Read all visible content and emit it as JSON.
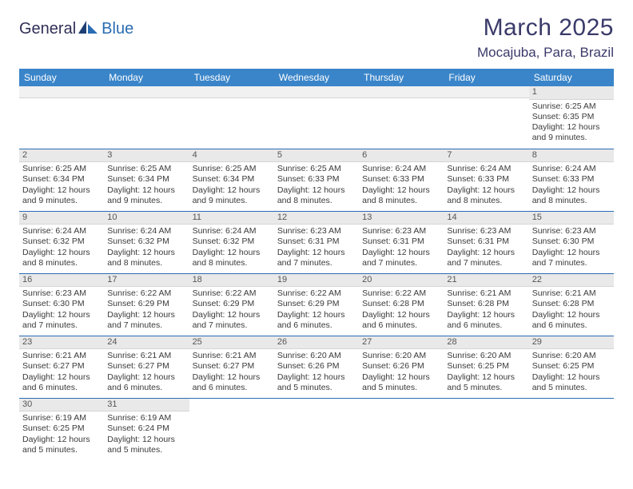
{
  "header": {
    "logo_general": "General",
    "logo_blue": "Blue",
    "month_title": "March 2025",
    "location": "Mocajuba, Para, Brazil"
  },
  "colors": {
    "header_bg": "#3a85c9",
    "row_divider": "#2a6cb2",
    "daynum_bg": "#e9e9e9",
    "title_color": "#3a3a6a"
  },
  "weekdays": [
    "Sunday",
    "Monday",
    "Tuesday",
    "Wednesday",
    "Thursday",
    "Friday",
    "Saturday"
  ],
  "weeks": [
    [
      null,
      null,
      null,
      null,
      null,
      null,
      {
        "n": "1",
        "sunrise": "Sunrise: 6:25 AM",
        "sunset": "Sunset: 6:35 PM",
        "daylight": "Daylight: 12 hours and 9 minutes."
      }
    ],
    [
      {
        "n": "2",
        "sunrise": "Sunrise: 6:25 AM",
        "sunset": "Sunset: 6:34 PM",
        "daylight": "Daylight: 12 hours and 9 minutes."
      },
      {
        "n": "3",
        "sunrise": "Sunrise: 6:25 AM",
        "sunset": "Sunset: 6:34 PM",
        "daylight": "Daylight: 12 hours and 9 minutes."
      },
      {
        "n": "4",
        "sunrise": "Sunrise: 6:25 AM",
        "sunset": "Sunset: 6:34 PM",
        "daylight": "Daylight: 12 hours and 9 minutes."
      },
      {
        "n": "5",
        "sunrise": "Sunrise: 6:25 AM",
        "sunset": "Sunset: 6:33 PM",
        "daylight": "Daylight: 12 hours and 8 minutes."
      },
      {
        "n": "6",
        "sunrise": "Sunrise: 6:24 AM",
        "sunset": "Sunset: 6:33 PM",
        "daylight": "Daylight: 12 hours and 8 minutes."
      },
      {
        "n": "7",
        "sunrise": "Sunrise: 6:24 AM",
        "sunset": "Sunset: 6:33 PM",
        "daylight": "Daylight: 12 hours and 8 minutes."
      },
      {
        "n": "8",
        "sunrise": "Sunrise: 6:24 AM",
        "sunset": "Sunset: 6:33 PM",
        "daylight": "Daylight: 12 hours and 8 minutes."
      }
    ],
    [
      {
        "n": "9",
        "sunrise": "Sunrise: 6:24 AM",
        "sunset": "Sunset: 6:32 PM",
        "daylight": "Daylight: 12 hours and 8 minutes."
      },
      {
        "n": "10",
        "sunrise": "Sunrise: 6:24 AM",
        "sunset": "Sunset: 6:32 PM",
        "daylight": "Daylight: 12 hours and 8 minutes."
      },
      {
        "n": "11",
        "sunrise": "Sunrise: 6:24 AM",
        "sunset": "Sunset: 6:32 PM",
        "daylight": "Daylight: 12 hours and 8 minutes."
      },
      {
        "n": "12",
        "sunrise": "Sunrise: 6:23 AM",
        "sunset": "Sunset: 6:31 PM",
        "daylight": "Daylight: 12 hours and 7 minutes."
      },
      {
        "n": "13",
        "sunrise": "Sunrise: 6:23 AM",
        "sunset": "Sunset: 6:31 PM",
        "daylight": "Daylight: 12 hours and 7 minutes."
      },
      {
        "n": "14",
        "sunrise": "Sunrise: 6:23 AM",
        "sunset": "Sunset: 6:31 PM",
        "daylight": "Daylight: 12 hours and 7 minutes."
      },
      {
        "n": "15",
        "sunrise": "Sunrise: 6:23 AM",
        "sunset": "Sunset: 6:30 PM",
        "daylight": "Daylight: 12 hours and 7 minutes."
      }
    ],
    [
      {
        "n": "16",
        "sunrise": "Sunrise: 6:23 AM",
        "sunset": "Sunset: 6:30 PM",
        "daylight": "Daylight: 12 hours and 7 minutes."
      },
      {
        "n": "17",
        "sunrise": "Sunrise: 6:22 AM",
        "sunset": "Sunset: 6:29 PM",
        "daylight": "Daylight: 12 hours and 7 minutes."
      },
      {
        "n": "18",
        "sunrise": "Sunrise: 6:22 AM",
        "sunset": "Sunset: 6:29 PM",
        "daylight": "Daylight: 12 hours and 7 minutes."
      },
      {
        "n": "19",
        "sunrise": "Sunrise: 6:22 AM",
        "sunset": "Sunset: 6:29 PM",
        "daylight": "Daylight: 12 hours and 6 minutes."
      },
      {
        "n": "20",
        "sunrise": "Sunrise: 6:22 AM",
        "sunset": "Sunset: 6:28 PM",
        "daylight": "Daylight: 12 hours and 6 minutes."
      },
      {
        "n": "21",
        "sunrise": "Sunrise: 6:21 AM",
        "sunset": "Sunset: 6:28 PM",
        "daylight": "Daylight: 12 hours and 6 minutes."
      },
      {
        "n": "22",
        "sunrise": "Sunrise: 6:21 AM",
        "sunset": "Sunset: 6:28 PM",
        "daylight": "Daylight: 12 hours and 6 minutes."
      }
    ],
    [
      {
        "n": "23",
        "sunrise": "Sunrise: 6:21 AM",
        "sunset": "Sunset: 6:27 PM",
        "daylight": "Daylight: 12 hours and 6 minutes."
      },
      {
        "n": "24",
        "sunrise": "Sunrise: 6:21 AM",
        "sunset": "Sunset: 6:27 PM",
        "daylight": "Daylight: 12 hours and 6 minutes."
      },
      {
        "n": "25",
        "sunrise": "Sunrise: 6:21 AM",
        "sunset": "Sunset: 6:27 PM",
        "daylight": "Daylight: 12 hours and 6 minutes."
      },
      {
        "n": "26",
        "sunrise": "Sunrise: 6:20 AM",
        "sunset": "Sunset: 6:26 PM",
        "daylight": "Daylight: 12 hours and 5 minutes."
      },
      {
        "n": "27",
        "sunrise": "Sunrise: 6:20 AM",
        "sunset": "Sunset: 6:26 PM",
        "daylight": "Daylight: 12 hours and 5 minutes."
      },
      {
        "n": "28",
        "sunrise": "Sunrise: 6:20 AM",
        "sunset": "Sunset: 6:25 PM",
        "daylight": "Daylight: 12 hours and 5 minutes."
      },
      {
        "n": "29",
        "sunrise": "Sunrise: 6:20 AM",
        "sunset": "Sunset: 6:25 PM",
        "daylight": "Daylight: 12 hours and 5 minutes."
      }
    ],
    [
      {
        "n": "30",
        "sunrise": "Sunrise: 6:19 AM",
        "sunset": "Sunset: 6:25 PM",
        "daylight": "Daylight: 12 hours and 5 minutes."
      },
      {
        "n": "31",
        "sunrise": "Sunrise: 6:19 AM",
        "sunset": "Sunset: 6:24 PM",
        "daylight": "Daylight: 12 hours and 5 minutes."
      },
      null,
      null,
      null,
      null,
      null
    ]
  ]
}
